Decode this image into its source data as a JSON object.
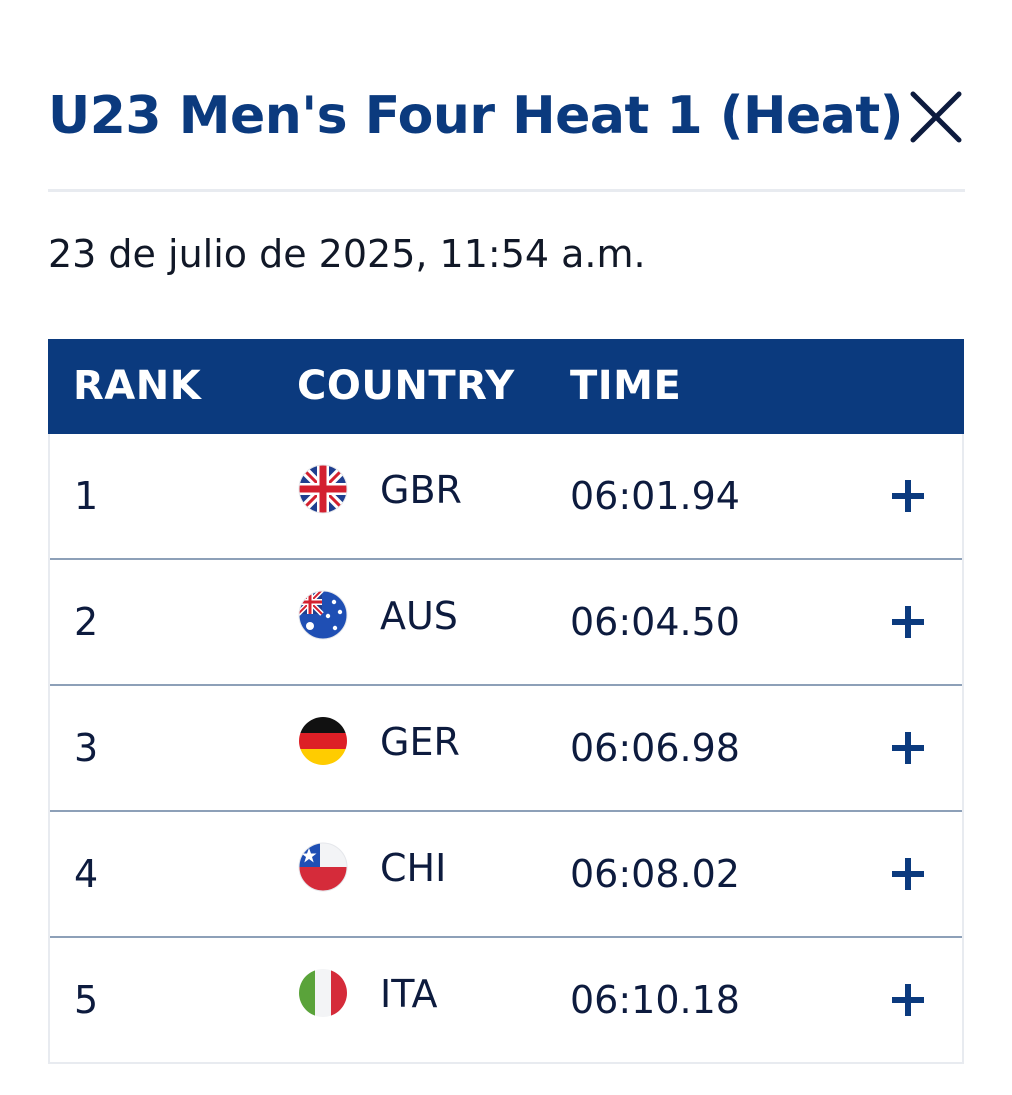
{
  "title": "U23 Men's Four Heat 1 (Heat)",
  "close_icon": "close-icon",
  "date": "23 de julio de 2025, 11:54 a.m.",
  "table": {
    "headers": {
      "rank": "RANK",
      "country": "COUNTRY",
      "time": "TIME"
    },
    "rows": [
      {
        "rank": "1",
        "country": "GBR",
        "flag_icon": "flag-gbr-icon",
        "time": "06:01.94",
        "expand_icon": "plus-icon"
      },
      {
        "rank": "2",
        "country": "AUS",
        "flag_icon": "flag-aus-icon",
        "time": "06:04.50",
        "expand_icon": "plus-icon"
      },
      {
        "rank": "3",
        "country": "GER",
        "flag_icon": "flag-ger-icon",
        "time": "06:06.98",
        "expand_icon": "plus-icon"
      },
      {
        "rank": "4",
        "country": "CHI",
        "flag_icon": "flag-chi-icon",
        "time": "06:08.02",
        "expand_icon": "plus-icon"
      },
      {
        "rank": "5",
        "country": "ITA",
        "flag_icon": "flag-ita-icon",
        "time": "06:10.18",
        "expand_icon": "plus-icon"
      }
    ]
  },
  "colors": {
    "brand_blue": "#0b3a7e",
    "text": "#0d1b3e",
    "row_divider": "#8da0b8",
    "border": "#e8ebf0"
  }
}
